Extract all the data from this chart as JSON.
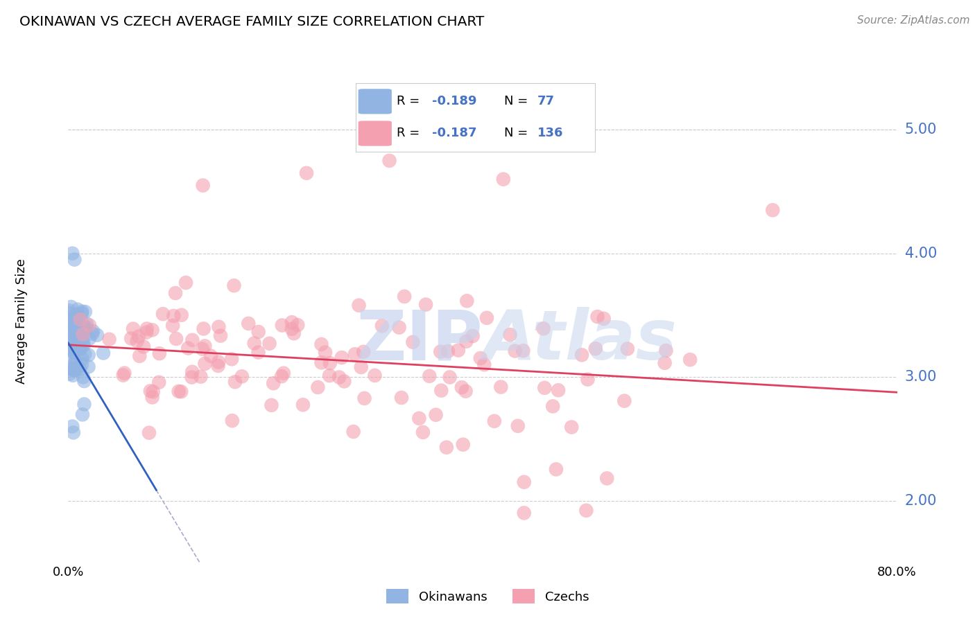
{
  "title": "OKINAWAN VS CZECH AVERAGE FAMILY SIZE CORRELATION CHART",
  "source": "Source: ZipAtlas.com",
  "ylabel": "Average Family Size",
  "yticks": [
    2.0,
    3.0,
    4.0,
    5.0
  ],
  "xlim": [
    0.0,
    0.8
  ],
  "ylim": [
    1.5,
    5.4
  ],
  "okinawan_R": "-0.189",
  "okinawan_N": "77",
  "czech_R": "-0.187",
  "czech_N": "136",
  "okinawan_color": "#92b4e3",
  "czech_color": "#f4a0b0",
  "okinawan_line_color": "#3060c0",
  "czech_line_color": "#e04060",
  "dashed_line_color": "#aaaacc",
  "watermark_color": "#c8d4ee",
  "background_color": "#ffffff",
  "grid_color": "#cccccc",
  "tick_color": "#4472c4",
  "legend_border_color": "#cccccc"
}
